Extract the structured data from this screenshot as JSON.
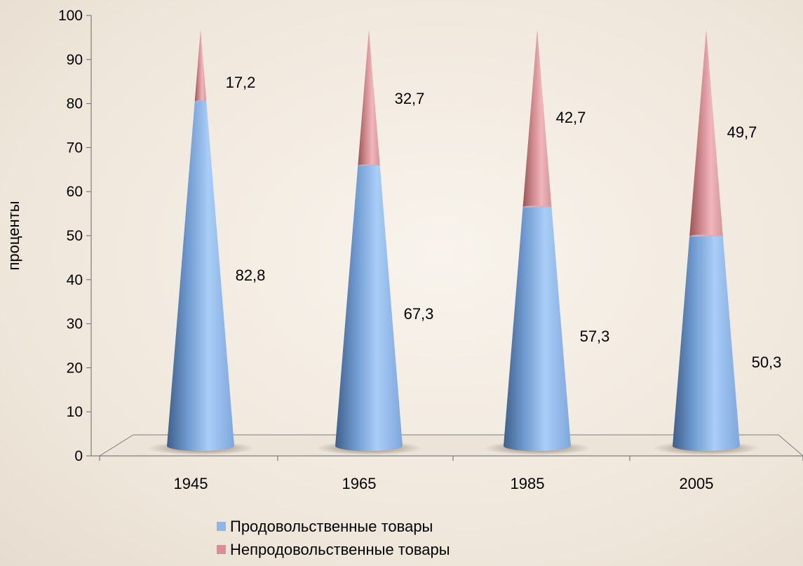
{
  "chart_data": {
    "type": "bar",
    "style": "3d-cone-stacked-100",
    "categories": [
      "1945",
      "1965",
      "1985",
      "2005"
    ],
    "series": [
      {
        "name": "Продовольственные товары",
        "values": [
          82.8,
          67.3,
          57.3,
          50.3
        ],
        "labels": [
          "82,8",
          "67,3",
          "57,3",
          "50,3"
        ],
        "color": "#8fb6e6"
      },
      {
        "name": "Непродовольственные товары",
        "values": [
          17.2,
          32.7,
          42.7,
          49.7
        ],
        "labels": [
          "17,2",
          "32,7",
          "42,7",
          "49,7"
        ],
        "color": "#d98f95"
      }
    ],
    "ylabel": "проценты",
    "xlabel": "",
    "ylim": [
      0,
      100
    ],
    "yticks": [
      "0",
      "10",
      "20",
      "30",
      "40",
      "50",
      "60",
      "70",
      "80",
      "90",
      "100"
    ],
    "legend_position": "bottom",
    "grid": false
  }
}
